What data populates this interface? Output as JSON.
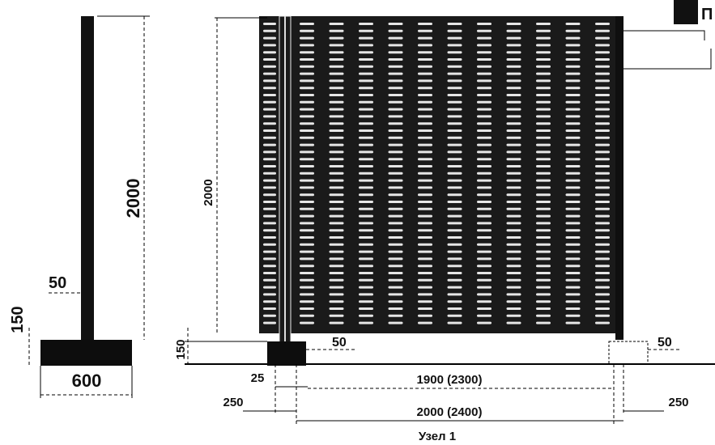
{
  "side_view": {
    "height_label": "2000",
    "post_label": "50",
    "footing_height_label": "150",
    "footing_width_label": "600"
  },
  "front_view": {
    "height_label": "2000",
    "footing_height_label": "150",
    "post_label_left": "50",
    "post_label_right": "50",
    "offset_label": "25",
    "margin_left_label": "250",
    "margin_right_label": "250",
    "inner_span_label": "1900 (2300)",
    "outer_span_label": "2000 (2400)",
    "corner_letter": "П",
    "caption": "Узел 1"
  },
  "colors": {
    "ink": "#111111",
    "panel": "#1a1a1a",
    "slot": "#e6e6e6",
    "footing": "#0d0d0d"
  }
}
